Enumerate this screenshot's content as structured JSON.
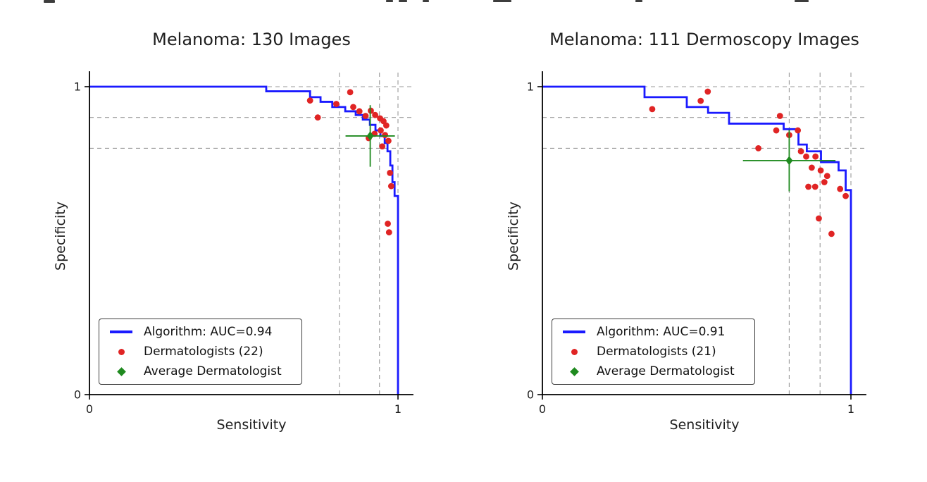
{
  "figure": {
    "background": "#ffffff"
  },
  "colors": {
    "algorithm": "#1a1aff",
    "dermatologist": "#e02424",
    "average": "#1f8a1f",
    "dashed": "#999999",
    "axis": "#000000",
    "text": "#1f1f1f"
  },
  "chart_data": [
    {
      "type": "line",
      "subtype": "roc-curve",
      "title": "Melanoma: 130 Images",
      "xlabel": "Sensitivity",
      "ylabel": "Specificity",
      "xlim": [
        0,
        1.05
      ],
      "ylim": [
        0,
        1.05
      ],
      "grid": "dashed reference lines",
      "x_ticks": [
        {
          "v": 0,
          "label": "0"
        },
        {
          "v": 1,
          "label": "1"
        }
      ],
      "y_ticks": [
        {
          "v": 0,
          "label": "0"
        },
        {
          "v": 1,
          "label": "1"
        }
      ],
      "dashed_x": [
        0.81,
        0.94,
        1.0
      ],
      "dashed_y": [
        0.8,
        0.9,
        1.0
      ],
      "legend_position": "lower left",
      "legend": [
        {
          "marker": "line",
          "color": "algorithm",
          "label": "Algorithm: AUC=0.94"
        },
        {
          "marker": "dot",
          "color": "dermatologist",
          "label": "Dermatologists (22)"
        },
        {
          "marker": "diamond",
          "color": "average",
          "label": "Average Dermatologist"
        }
      ],
      "series": [
        {
          "name": "Algorithm",
          "kind": "roc_step",
          "auc": 0.94,
          "points": [
            [
              0,
              1
            ],
            [
              0.573,
              0.985
            ],
            [
              0.715,
              0.966
            ],
            [
              0.749,
              0.951
            ],
            [
              0.787,
              0.934
            ],
            [
              0.829,
              0.92
            ],
            [
              0.863,
              0.908
            ],
            [
              0.886,
              0.893
            ],
            [
              0.909,
              0.876
            ],
            [
              0.927,
              0.858
            ],
            [
              0.943,
              0.84
            ],
            [
              0.957,
              0.817
            ],
            [
              0.966,
              0.79
            ],
            [
              0.975,
              0.744
            ],
            [
              0.982,
              0.69
            ],
            [
              0.989,
              0.645
            ],
            [
              1.0,
              0
            ]
          ]
        },
        {
          "name": "Dermatologists",
          "kind": "scatter",
          "count": 22,
          "points": [
            [
              0.715,
              0.955
            ],
            [
              0.74,
              0.9
            ],
            [
              0.845,
              0.982
            ],
            [
              0.8,
              0.944
            ],
            [
              0.855,
              0.934
            ],
            [
              0.875,
              0.92
            ],
            [
              0.895,
              0.905
            ],
            [
              0.912,
              0.922
            ],
            [
              0.926,
              0.908
            ],
            [
              0.942,
              0.897
            ],
            [
              0.953,
              0.888
            ],
            [
              0.962,
              0.874
            ],
            [
              0.944,
              0.858
            ],
            [
              0.924,
              0.847
            ],
            [
              0.905,
              0.833
            ],
            [
              0.958,
              0.843
            ],
            [
              0.969,
              0.824
            ],
            [
              0.949,
              0.806
            ],
            [
              0.974,
              0.72
            ],
            [
              0.978,
              0.677
            ],
            [
              0.967,
              0.555
            ],
            [
              0.971,
              0.527
            ]
          ]
        },
        {
          "name": "Average Dermatologist",
          "kind": "point_with_error",
          "x": 0.91,
          "y": 0.84,
          "xerr": 0.08,
          "yerr": 0.1
        }
      ]
    },
    {
      "type": "line",
      "subtype": "roc-curve",
      "title": "Melanoma: 111 Dermoscopy Images",
      "xlabel": "Sensitivity",
      "ylabel": "Specificity",
      "xlim": [
        0,
        1.05
      ],
      "ylim": [
        0,
        1.05
      ],
      "grid": "dashed reference lines",
      "x_ticks": [
        {
          "v": 0,
          "label": "0"
        },
        {
          "v": 1,
          "label": "1"
        }
      ],
      "y_ticks": [
        {
          "v": 0,
          "label": "0"
        },
        {
          "v": 1,
          "label": "1"
        }
      ],
      "dashed_x": [
        0.8,
        0.9,
        1.0
      ],
      "dashed_y": [
        0.8,
        0.9,
        1.0
      ],
      "legend_position": "lower left",
      "legend": [
        {
          "marker": "line",
          "color": "algorithm",
          "label": "Algorithm: AUC=0.91"
        },
        {
          "marker": "dot",
          "color": "dermatologist",
          "label": "Dermatologists (21)"
        },
        {
          "marker": "diamond",
          "color": "average",
          "label": "Average Dermatologist"
        }
      ],
      "series": [
        {
          "name": "Algorithm",
          "kind": "roc_step",
          "auc": 0.91,
          "points": [
            [
              0,
              1
            ],
            [
              0.331,
              0.966
            ],
            [
              0.468,
              0.934
            ],
            [
              0.537,
              0.915
            ],
            [
              0.605,
              0.88
            ],
            [
              0.782,
              0.862
            ],
            [
              0.83,
              0.812
            ],
            [
              0.857,
              0.79
            ],
            [
              0.903,
              0.755
            ],
            [
              0.96,
              0.728
            ],
            [
              0.983,
              0.664
            ],
            [
              1.0,
              0
            ]
          ]
        },
        {
          "name": "Dermatologists",
          "kind": "scatter",
          "count": 21,
          "points": [
            [
              0.356,
              0.927
            ],
            [
              0.536,
              0.984
            ],
            [
              0.513,
              0.954
            ],
            [
              0.7,
              0.8
            ],
            [
              0.77,
              0.905
            ],
            [
              0.758,
              0.858
            ],
            [
              0.8,
              0.843
            ],
            [
              0.828,
              0.858
            ],
            [
              0.838,
              0.79
            ],
            [
              0.855,
              0.773
            ],
            [
              0.873,
              0.737
            ],
            [
              0.885,
              0.773
            ],
            [
              0.902,
              0.728
            ],
            [
              0.914,
              0.69
            ],
            [
              0.884,
              0.675
            ],
            [
              0.862,
              0.675
            ],
            [
              0.923,
              0.71
            ],
            [
              0.965,
              0.668
            ],
            [
              0.983,
              0.645
            ],
            [
              0.896,
              0.572
            ],
            [
              0.937,
              0.522
            ]
          ]
        },
        {
          "name": "Average Dermatologist",
          "kind": "point_with_error",
          "x": 0.8,
          "y": 0.76,
          "xerr": 0.15,
          "yerr": 0.1
        }
      ]
    }
  ]
}
